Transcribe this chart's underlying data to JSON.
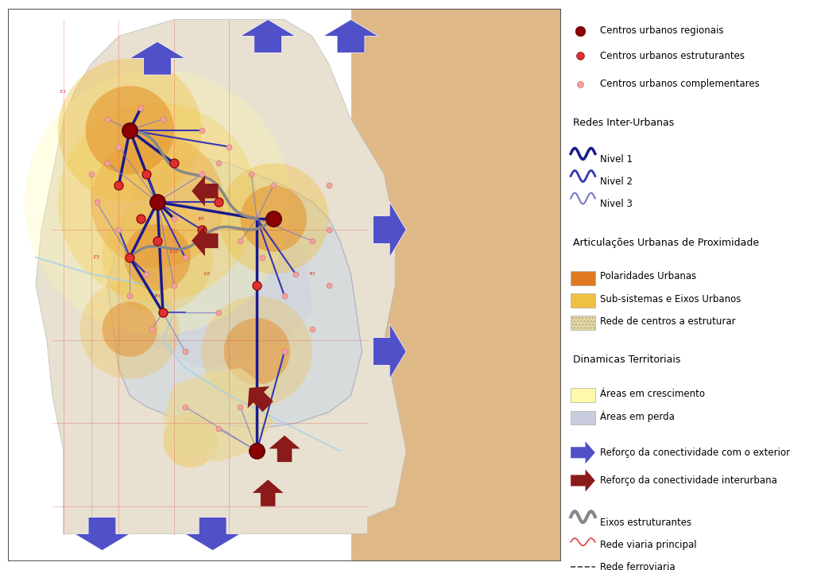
{
  "title": "",
  "bg_map_color": "#c8e8f0",
  "bg_land_color": "#deb887",
  "bg_region_color": "#c8d8e8",
  "legend_bg": "#ffffff",
  "border_color": "#888888",
  "legend_items": {
    "centros_regionais": {
      "label": "Centros urbanos regionais",
      "color": "#8b0000",
      "size": 12
    },
    "centros_estruturantes": {
      "label": "Centros urbanos estruturantes",
      "color": "#e03030",
      "size": 10
    },
    "centros_complementares": {
      "label": "Centros urbanos complementares",
      "color": "#f4a0a0",
      "size": 8
    }
  },
  "section_redes": "Redes Inter-Urbanas",
  "nivel1_color": "#1a1a8c",
  "nivel2_color": "#3636b4",
  "nivel3_color": "#7878c8",
  "section_articulacoes": "Articulações Urbanas de Proximidade",
  "polaridades_color": "#e07820",
  "subsistemas_color": "#f0c040",
  "rede_centros_color": "#e8d898",
  "section_dinamicas": "Dinamicas Territoriais",
  "areas_crescimento_color": "#fffaaa",
  "areas_perda_color": "#c8ccdc",
  "reforca_ext_color": "#5050c8",
  "reforca_int_color": "#8b1a1a",
  "eixos_color": "#888888",
  "rede_viaria_color": "#e04040",
  "rede_ferro_color": "#404040",
  "rios_color": "#a0d0f0"
}
